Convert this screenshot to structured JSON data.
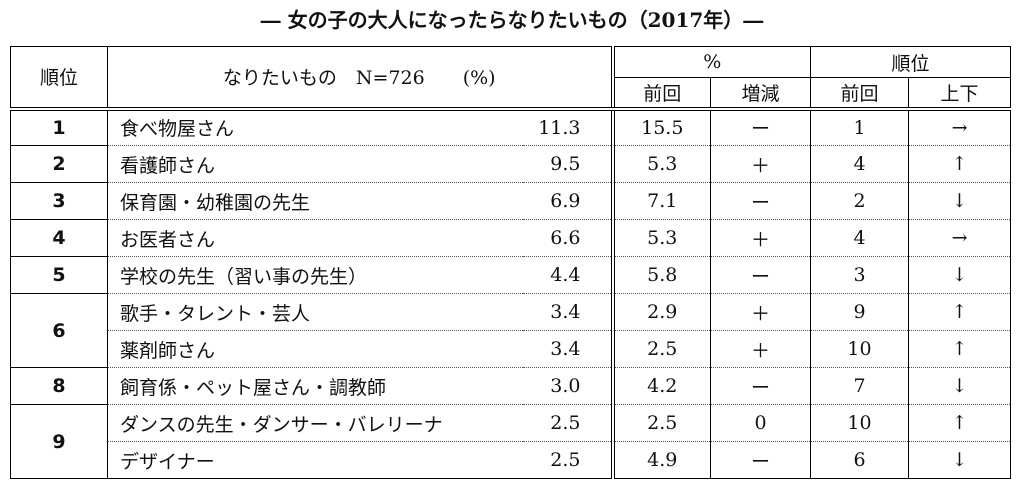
{
  "title": "― 女の子の大人になったらなりたいもの（2017年）―",
  "header": {
    "rank": "順位",
    "item": "なりたいもの　N=726　　(%)",
    "pct": "%",
    "pct_prev": "前回",
    "pct_change": "増減",
    "rank_group": "順位",
    "rank_prev": "前回",
    "rank_move": "上下"
  },
  "groups": [
    {
      "rank": "1",
      "rows": [
        {
          "item": "食べ物屋さん",
          "value": "11.3",
          "prev_pct": "15.5",
          "change": "ー",
          "prev_rank": "1",
          "trend": "→"
        }
      ]
    },
    {
      "rank": "2",
      "rows": [
        {
          "item": "看護師さん",
          "value": "9.5",
          "prev_pct": "5.3",
          "change": "＋",
          "prev_rank": "4",
          "trend": "↑"
        }
      ]
    },
    {
      "rank": "3",
      "rows": [
        {
          "item": "保育園・幼稚園の先生",
          "value": "6.9",
          "prev_pct": "7.1",
          "change": "ー",
          "prev_rank": "2",
          "trend": "↓"
        }
      ]
    },
    {
      "rank": "4",
      "rows": [
        {
          "item": "お医者さん",
          "value": "6.6",
          "prev_pct": "5.3",
          "change": "＋",
          "prev_rank": "4",
          "trend": "→"
        }
      ]
    },
    {
      "rank": "5",
      "rows": [
        {
          "item": "学校の先生（習い事の先生）",
          "value": "4.4",
          "prev_pct": "5.8",
          "change": "ー",
          "prev_rank": "3",
          "trend": "↓"
        }
      ]
    },
    {
      "rank": "6",
      "rows": [
        {
          "item": "歌手・タレント・芸人",
          "value": "3.4",
          "prev_pct": "2.9",
          "change": "＋",
          "prev_rank": "9",
          "trend": "↑"
        },
        {
          "item": "薬剤師さん",
          "value": "3.4",
          "prev_pct": "2.5",
          "change": "＋",
          "prev_rank": "10",
          "trend": "↑"
        }
      ]
    },
    {
      "rank": "8",
      "rows": [
        {
          "item": "飼育係・ペット屋さん・調教師",
          "value": "3.0",
          "prev_pct": "4.2",
          "change": "ー",
          "prev_rank": "7",
          "trend": "↓"
        }
      ]
    },
    {
      "rank": "9",
      "rows": [
        {
          "item": "ダンスの先生・ダンサー・バレリーナ",
          "value": "2.5",
          "prev_pct": "2.5",
          "change": "0",
          "prev_rank": "10",
          "trend": "↑"
        },
        {
          "item": "デザイナー",
          "value": "2.5",
          "prev_pct": "4.9",
          "change": "ー",
          "prev_rank": "6",
          "trend": "↓"
        }
      ]
    }
  ]
}
